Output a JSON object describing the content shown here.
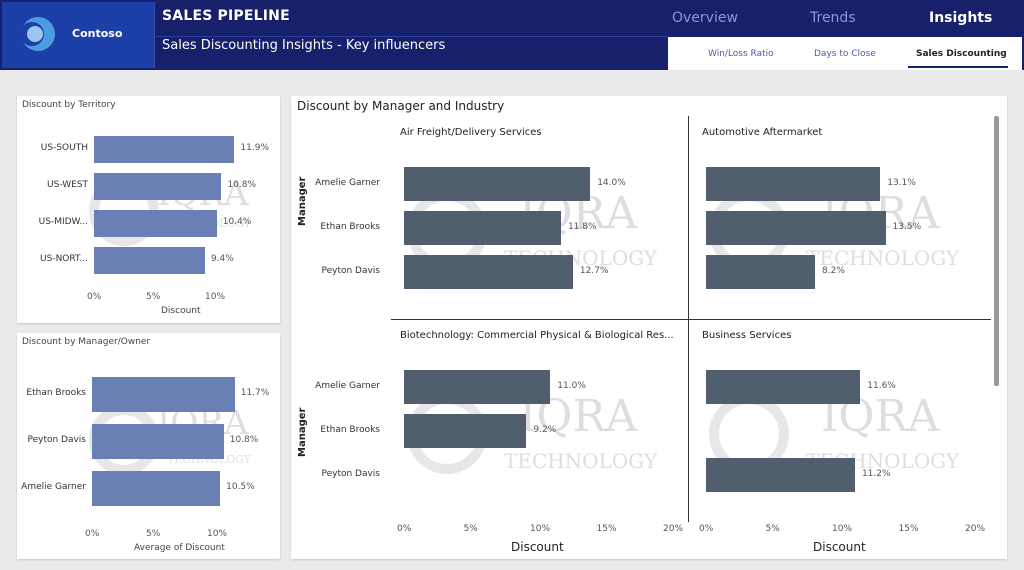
{
  "brand": {
    "name": "Contoso"
  },
  "header": {
    "title": "SALES PIPELINE",
    "subtitle": "Sales Discounting Insights - Key influencers",
    "nav": [
      "Overview",
      "Trends",
      "Insights"
    ],
    "subnav": [
      "Win/Loss Ratio",
      "Days to Close",
      "Sales Discounting"
    ]
  },
  "watermark": {
    "main": "IQRA",
    "sub": "TECHNOLOGY"
  },
  "territory": {
    "title": "Discount by Territory",
    "categories": [
      "US-SOUTH",
      "US-WEST",
      "US-MIDW...",
      "US-NORT..."
    ],
    "labels": [
      "11.9%",
      "10.8%",
      "10.4%",
      "9.4%"
    ],
    "ticks": [
      "0%",
      "5%",
      "10%"
    ],
    "xlabel": "Discount"
  },
  "owner": {
    "title": "Discount by Manager/Owner",
    "categories": [
      "Ethan Brooks",
      "Peyton Davis",
      "Amelie Garner"
    ],
    "labels": [
      "11.7%",
      "10.8%",
      "10.5%"
    ],
    "ticks": [
      "0%",
      "5%",
      "10%"
    ],
    "xlabel": "Average of Discount"
  },
  "industry": {
    "title": "Discount by Manager and Industry",
    "ylabel": "Manager",
    "xlabel": "Discount",
    "ticks": [
      "0%",
      "5%",
      "10%",
      "15%",
      "20%"
    ],
    "managers": [
      "Amelie Garner",
      "Ethan Brooks",
      "Peyton Davis"
    ],
    "panels": [
      {
        "title": "Air Freight/Delivery Services",
        "labels": [
          "14.0%",
          "11.8%",
          "12.7%"
        ]
      },
      {
        "title": "Automotive Aftermarket",
        "labels": [
          "13.1%",
          "13.5%",
          "8.2%"
        ]
      },
      {
        "title": "Biotechnology: Commercial Physical & Biological Res...",
        "labels": [
          "11.0%",
          "9.2%",
          ""
        ]
      },
      {
        "title": "Business Services",
        "labels": [
          "11.6%",
          "",
          "11.2%"
        ]
      }
    ]
  },
  "chart_data": [
    {
      "type": "bar",
      "title": "Discount by Territory",
      "categories": [
        "US-SOUTH",
        "US-WEST",
        "US-MIDW...",
        "US-NORT..."
      ],
      "values": [
        11.9,
        10.8,
        10.4,
        9.4
      ],
      "xlabel": "Discount",
      "xlim": [
        0,
        12.5
      ],
      "color": "#6a80b4"
    },
    {
      "type": "bar",
      "title": "Discount by Manager/Owner",
      "categories": [
        "Ethan Brooks",
        "Peyton Davis",
        "Amelie Garner"
      ],
      "values": [
        11.7,
        10.8,
        10.5
      ],
      "xlabel": "Average of Discount",
      "xlim": [
        0,
        12.5
      ],
      "color": "#6a80b4"
    },
    {
      "type": "bar",
      "title": "Discount by Manager and Industry",
      "ylabel": "Manager",
      "xlabel": "Discount",
      "xlim": [
        0,
        20
      ],
      "categories": [
        "Amelie Garner",
        "Ethan Brooks",
        "Peyton Davis"
      ],
      "color": "#505e6d",
      "series": [
        {
          "name": "Air Freight/Delivery Services",
          "values": [
            14.0,
            11.8,
            12.7
          ]
        },
        {
          "name": "Automotive Aftermarket",
          "values": [
            13.1,
            13.5,
            8.2
          ]
        },
        {
          "name": "Biotechnology: Commercial Physical & Biological Res...",
          "values": [
            11.0,
            9.2,
            null
          ]
        },
        {
          "name": "Business Services",
          "values": [
            11.6,
            null,
            11.2
          ]
        }
      ]
    }
  ]
}
